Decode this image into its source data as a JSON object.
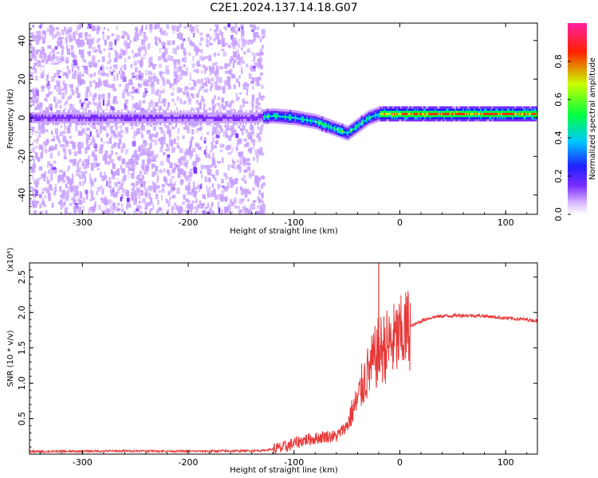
{
  "title": "C2E1.2024.137.14.18.G07",
  "chart_data": [
    {
      "type": "heatmap",
      "name": "spectrogram",
      "xlabel": "Height of straight line (km)",
      "ylabel": "Frequency (Hz)",
      "xlim": [
        -350,
        130
      ],
      "ylim": [
        -50,
        49
      ],
      "xticks": [
        -300,
        -200,
        -100,
        0,
        100
      ],
      "yticks": [
        -40,
        -20,
        0,
        20,
        40
      ],
      "colorbar": {
        "label": "Normalized spectral amplitude",
        "range": [
          0,
          1
        ],
        "ticks": [
          0.0,
          0.2,
          0.4,
          0.6,
          0.8
        ],
        "colors": [
          "#ffffff",
          "#c8a0ff",
          "#7a2cff",
          "#2020ff",
          "#00c8ff",
          "#00ff40",
          "#c8ff00",
          "#ff2000",
          "#ff20a0"
        ]
      },
      "ridge": {
        "x": [
          -350,
          -300,
          -200,
          -140,
          -120,
          -100,
          -80,
          -70,
          -60,
          -50,
          -40,
          -30,
          -20,
          -10,
          0,
          20,
          60,
          100,
          130
        ],
        "freq": [
          0,
          0,
          0,
          0,
          1,
          0,
          -2,
          -4,
          -6,
          -8,
          -4,
          0,
          2,
          2,
          2,
          2,
          2,
          2,
          2
        ]
      }
    },
    {
      "type": "line",
      "name": "snr",
      "xlabel": "Height of straight line (km)",
      "ylabel": "SNR (10 * v/v)",
      "y_multiplier": "(x10⁴)",
      "xlim": [
        -350,
        130
      ],
      "ylim": [
        0,
        27000
      ],
      "xticks": [
        -300,
        -200,
        -100,
        0,
        100
      ],
      "ytick_values": [
        5000,
        10000,
        15000,
        20000,
        25000
      ],
      "ytick_labels": [
        "0.5",
        "1.0",
        "1.5",
        "2.0",
        "2.5"
      ],
      "line_color": "#e83838",
      "series": [
        {
          "x": [
            -350,
            -300,
            -250,
            -200,
            -150,
            -130,
            -110,
            -100,
            -90,
            -80,
            -70,
            -60,
            -50,
            -45,
            -40,
            -35,
            -30,
            -25,
            -20,
            -15,
            -10,
            -5,
            0,
            10,
            20,
            30,
            40,
            60,
            80,
            100,
            120,
            130
          ],
          "y": [
            350,
            400,
            450,
            400,
            450,
            500,
            900,
            1500,
            2000,
            2200,
            2500,
            2500,
            4000,
            6000,
            7500,
            10000,
            11500,
            13000,
            14500,
            15000,
            15500,
            16000,
            16500,
            18000,
            18800,
            19300,
            19500,
            19600,
            19500,
            19200,
            19000,
            18800
          ]
        }
      ],
      "spike": {
        "x": -20,
        "y": 27000
      }
    }
  ]
}
